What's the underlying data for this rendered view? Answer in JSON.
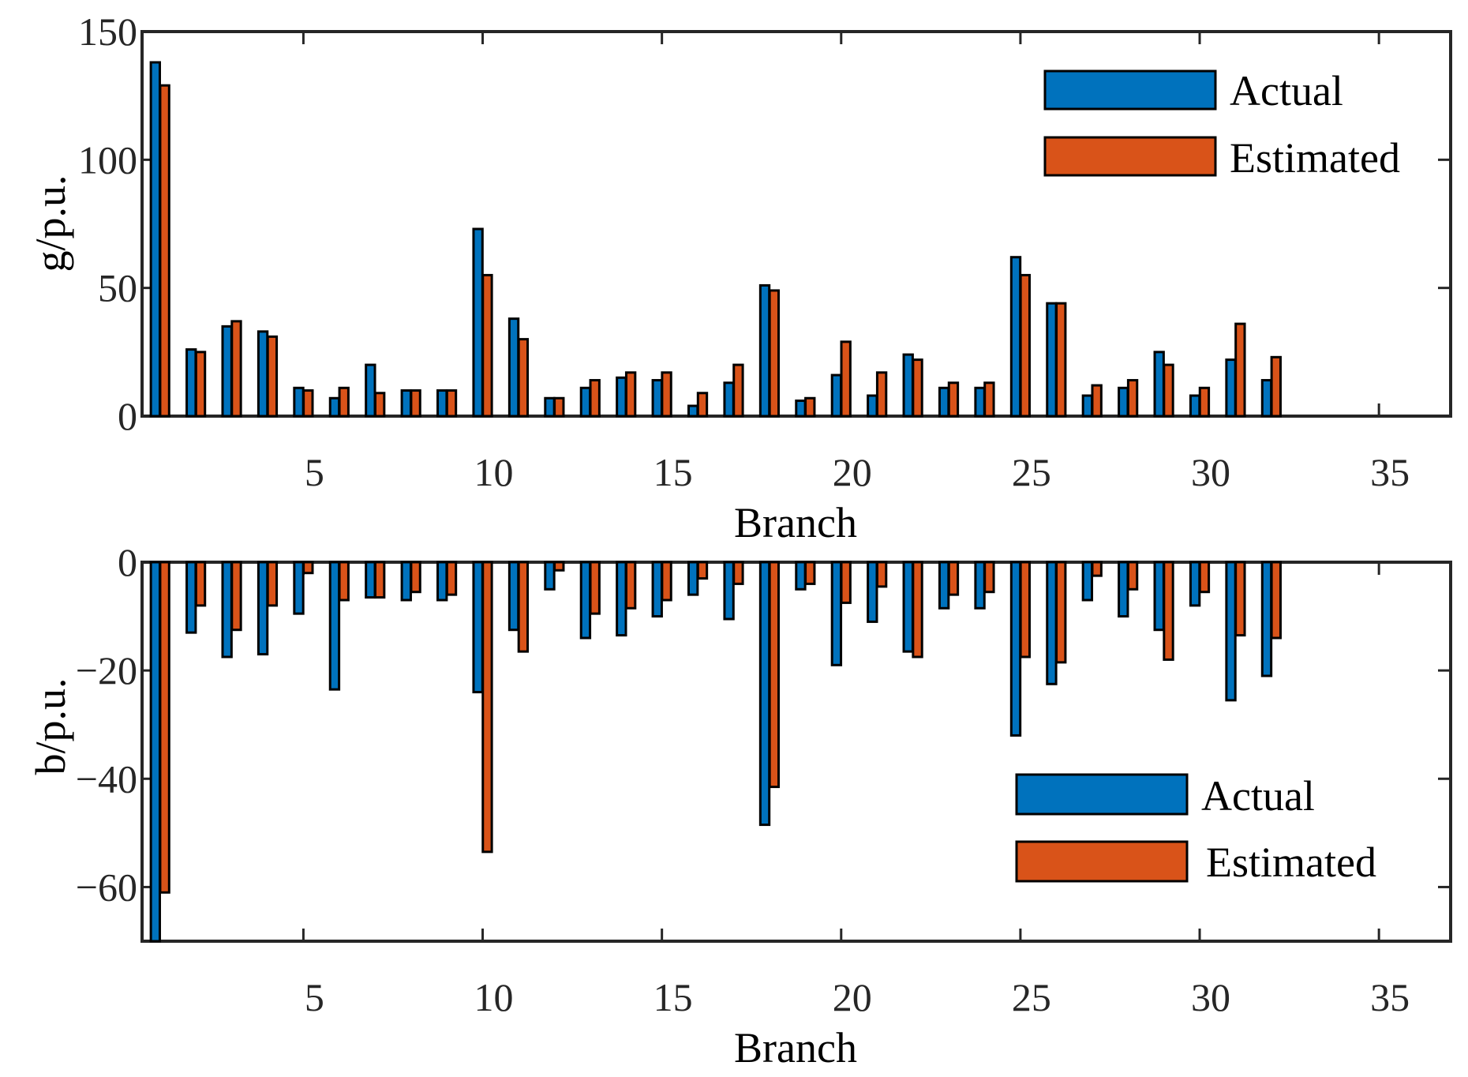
{
  "colors": {
    "actual": "#0072BD",
    "estimated": "#D95319",
    "axis": "#262626"
  },
  "chart_data": [
    {
      "type": "bar",
      "title": "",
      "xlabel": "Branch",
      "ylabel": "g/p.u.",
      "xlim": [
        0.5,
        37
      ],
      "ylim": [
        0,
        150
      ],
      "xticks": [
        5,
        10,
        15,
        20,
        25,
        30,
        35
      ],
      "xtick_labels": [
        "5",
        "10",
        "15",
        "20",
        "25",
        "30",
        "35"
      ],
      "yticks": [
        0,
        50,
        100,
        150
      ],
      "ytick_labels": [
        "0",
        "50",
        "100",
        "150"
      ],
      "legend_position": "top-right",
      "categories": [
        1,
        2,
        3,
        4,
        5,
        6,
        7,
        8,
        9,
        10,
        11,
        12,
        13,
        14,
        15,
        16,
        17,
        18,
        19,
        20,
        21,
        22,
        23,
        24,
        25,
        26,
        27,
        28,
        29,
        30,
        31,
        32
      ],
      "series": [
        {
          "name": "Actual",
          "values": [
            138,
            26,
            35,
            33,
            11,
            7,
            20,
            10,
            10,
            73,
            38,
            7,
            11,
            15,
            14,
            4,
            13,
            51,
            6,
            16,
            8,
            24,
            11,
            11,
            62,
            44,
            8,
            11,
            25,
            8,
            22,
            14
          ]
        },
        {
          "name": "Estimated",
          "values": [
            129,
            25,
            37,
            31,
            10,
            11,
            9,
            10,
            10,
            55,
            30,
            7,
            14,
            17,
            17,
            9,
            20,
            49,
            7,
            29,
            17,
            22,
            13,
            13,
            55,
            44,
            12,
            14,
            20,
            11,
            36,
            23
          ]
        }
      ]
    },
    {
      "type": "bar",
      "title": "",
      "xlabel": "Branch",
      "ylabel": "b/p.u.",
      "xlim": [
        0.5,
        37
      ],
      "ylim": [
        -70,
        0
      ],
      "xticks": [
        5,
        10,
        15,
        20,
        25,
        30,
        35
      ],
      "xtick_labels": [
        "5",
        "10",
        "15",
        "20",
        "25",
        "30",
        "35"
      ],
      "yticks": [
        -60,
        -40,
        -20,
        0
      ],
      "ytick_labels": [
        "−60",
        "−40",
        "−20",
        "0"
      ],
      "legend_position": "bottom-right",
      "categories": [
        1,
        2,
        3,
        4,
        5,
        6,
        7,
        8,
        9,
        10,
        11,
        12,
        13,
        14,
        15,
        16,
        17,
        18,
        19,
        20,
        21,
        22,
        23,
        24,
        25,
        26,
        27,
        28,
        29,
        30,
        31,
        32
      ],
      "series": [
        {
          "name": "Actual",
          "values": [
            -70,
            -13,
            -17.5,
            -17,
            -9.5,
            -23.5,
            -6.5,
            -7,
            -7,
            -24,
            -12.5,
            -5,
            -14,
            -13.5,
            -10,
            -6,
            -10.5,
            -48.5,
            -5,
            -19,
            -11,
            -16.5,
            -8.5,
            -8.5,
            -32,
            -22.5,
            -7,
            -10,
            -12.5,
            -8,
            -25.5,
            -21
          ]
        },
        {
          "name": "Estimated",
          "values": [
            -61,
            -8,
            -12.5,
            -8,
            -2,
            -7,
            -6.5,
            -5.5,
            -6,
            -53.5,
            -16.5,
            -1.5,
            -9.5,
            -8.5,
            -7,
            -3,
            -4,
            -41.5,
            -4,
            -7.5,
            -4.5,
            -17.5,
            -6,
            -5.5,
            -17.5,
            -18.5,
            -2.5,
            -5,
            -18,
            -5.5,
            -13.5,
            -14
          ]
        }
      ]
    }
  ]
}
